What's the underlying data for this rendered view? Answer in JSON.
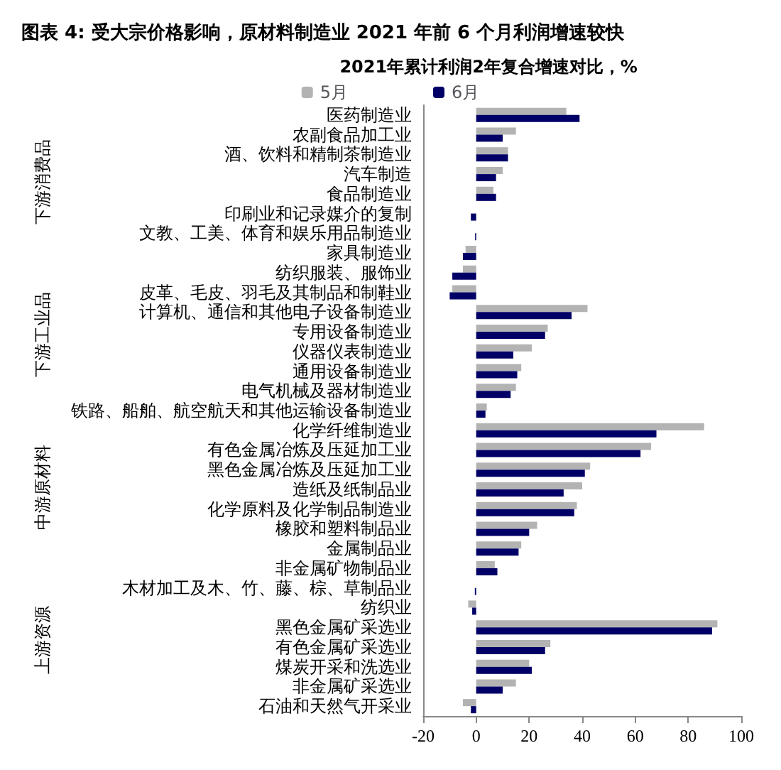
{
  "chart_data": {
    "type": "bar",
    "orientation": "horizontal",
    "title": "图表 4: 受大宗价格影响，原材料制造业 2021 年前 6 个月利润增速较快",
    "subtitle": "2021年累计利润2年复合增速对比，%",
    "categories": [
      "医药制造业",
      "农副食品加工业",
      "酒、饮料和精制茶制造业",
      "汽车制造",
      "食品制造业",
      "印刷业和记录媒介的复制",
      "文教、工美、体育和娱乐用品制造业",
      "家具制造业",
      "纺织服装、服饰业",
      "皮革、毛皮、羽毛及其制品和制鞋业",
      "计算机、通信和其他电子设备制造业",
      "专用设备制造业",
      "仪器仪表制造业",
      "通用设备制造业",
      "电气机械及器材制造业",
      "铁路、船舶、航空航天和其他运输设备制造业",
      "化学纤维制造业",
      "有色金属冶炼及压延加工业",
      "黑色金属冶炼及压延加工业",
      "造纸及纸制品业",
      "化学原料及化学制品制造业",
      "橡胶和塑料制品业",
      "金属制品业",
      "非金属矿物制品业",
      "木材加工及木、竹、藤、棕、草制品业",
      "纺织业",
      "黑色金属矿采选业",
      "有色金属矿采选业",
      "煤炭开采和洗选业",
      "非金属矿采选业",
      "石油和天然气开采业"
    ],
    "series": [
      {
        "name": "5月",
        "color": "#b3b3b3",
        "values": [
          34,
          15,
          12,
          10,
          6.5,
          null,
          null,
          -4,
          -5,
          -9,
          42,
          27,
          21,
          17,
          15,
          4,
          86,
          66,
          43,
          40,
          38,
          23,
          17,
          7,
          null,
          -3,
          91,
          28,
          20,
          15,
          -5
        ]
      },
      {
        "name": "6月",
        "color": "#000066",
        "values": [
          39,
          10,
          12,
          7.5,
          7.5,
          -2,
          -0.4,
          -5,
          -9,
          -10,
          36,
          26,
          14,
          15.5,
          13,
          3.5,
          68,
          62,
          41,
          33,
          37,
          20,
          16,
          8,
          -0.5,
          -1.5,
          89,
          26,
          21,
          10,
          -2
        ]
      }
    ],
    "xlim": [
      -20,
      100
    ],
    "xticks": [
      -20,
      0,
      20,
      40,
      60,
      80,
      100
    ],
    "legend": "top",
    "annotations": [
      "下游消费品",
      "下游工业品",
      "中游原材料",
      "上游资源"
    ]
  }
}
